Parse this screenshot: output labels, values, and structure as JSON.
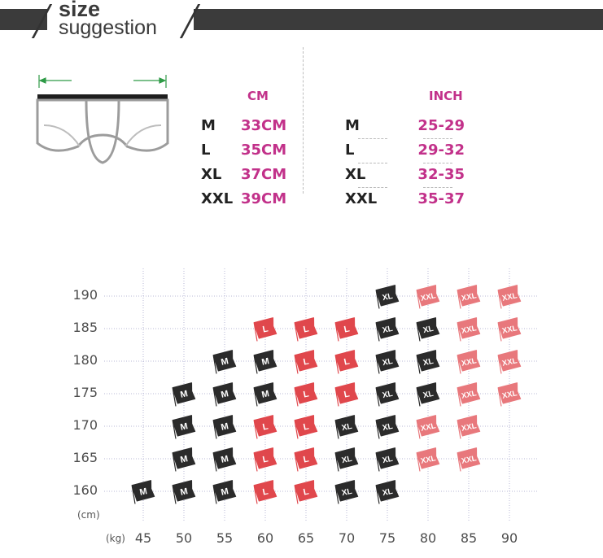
{
  "header": {
    "title_line1": "size",
    "title_line2": "suggestion"
  },
  "size_table": {
    "cm_title": "CM",
    "inch_title": "INCH",
    "rows": [
      {
        "size": "M",
        "cm": "33CM",
        "inch": "25-29"
      },
      {
        "size": "L",
        "cm": "35CM",
        "inch": "29-32"
      },
      {
        "size": "XL",
        "cm": "37CM",
        "inch": "32-35"
      },
      {
        "size": "XXL",
        "cm": "39CM",
        "inch": "35-37"
      }
    ]
  },
  "colors": {
    "pink": "#c2318a",
    "dark_flag": "#2b2b2b",
    "red_flag": "#e0474c",
    "xxl_flag": "#e8787c"
  },
  "chart_data": {
    "type": "table",
    "xlabel": "(kg)",
    "ylabel": "(cm)",
    "x": [
      45,
      50,
      55,
      60,
      65,
      70,
      75,
      80,
      85,
      90
    ],
    "y": [
      160,
      165,
      170,
      175,
      180,
      185,
      190
    ],
    "grid": true,
    "cells": [
      {
        "weight": 75,
        "height": 190,
        "size": "XL"
      },
      {
        "weight": 80,
        "height": 190,
        "size": "XXL"
      },
      {
        "weight": 85,
        "height": 190,
        "size": "XXL"
      },
      {
        "weight": 90,
        "height": 190,
        "size": "XXL"
      },
      {
        "weight": 60,
        "height": 185,
        "size": "L"
      },
      {
        "weight": 65,
        "height": 185,
        "size": "L"
      },
      {
        "weight": 70,
        "height": 185,
        "size": "L"
      },
      {
        "weight": 75,
        "height": 185,
        "size": "XL"
      },
      {
        "weight": 80,
        "height": 185,
        "size": "XL"
      },
      {
        "weight": 85,
        "height": 185,
        "size": "XXL"
      },
      {
        "weight": 90,
        "height": 185,
        "size": "XXL"
      },
      {
        "weight": 55,
        "height": 180,
        "size": "M"
      },
      {
        "weight": 60,
        "height": 180,
        "size": "M"
      },
      {
        "weight": 65,
        "height": 180,
        "size": "L"
      },
      {
        "weight": 70,
        "height": 180,
        "size": "L"
      },
      {
        "weight": 75,
        "height": 180,
        "size": "XL"
      },
      {
        "weight": 80,
        "height": 180,
        "size": "XL"
      },
      {
        "weight": 85,
        "height": 180,
        "size": "XXL"
      },
      {
        "weight": 90,
        "height": 180,
        "size": "XXL"
      },
      {
        "weight": 50,
        "height": 175,
        "size": "M"
      },
      {
        "weight": 55,
        "height": 175,
        "size": "M"
      },
      {
        "weight": 60,
        "height": 175,
        "size": "M"
      },
      {
        "weight": 65,
        "height": 175,
        "size": "L"
      },
      {
        "weight": 70,
        "height": 175,
        "size": "L"
      },
      {
        "weight": 75,
        "height": 175,
        "size": "XL"
      },
      {
        "weight": 80,
        "height": 175,
        "size": "XL"
      },
      {
        "weight": 85,
        "height": 175,
        "size": "XXL"
      },
      {
        "weight": 90,
        "height": 175,
        "size": "XXL"
      },
      {
        "weight": 50,
        "height": 170,
        "size": "M"
      },
      {
        "weight": 55,
        "height": 170,
        "size": "M"
      },
      {
        "weight": 60,
        "height": 170,
        "size": "L"
      },
      {
        "weight": 65,
        "height": 170,
        "size": "L"
      },
      {
        "weight": 70,
        "height": 170,
        "size": "XL"
      },
      {
        "weight": 75,
        "height": 170,
        "size": "XL"
      },
      {
        "weight": 80,
        "height": 170,
        "size": "XXL"
      },
      {
        "weight": 85,
        "height": 170,
        "size": "XXL"
      },
      {
        "weight": 50,
        "height": 165,
        "size": "M"
      },
      {
        "weight": 55,
        "height": 165,
        "size": "M"
      },
      {
        "weight": 60,
        "height": 165,
        "size": "L"
      },
      {
        "weight": 65,
        "height": 165,
        "size": "L"
      },
      {
        "weight": 70,
        "height": 165,
        "size": "XL"
      },
      {
        "weight": 75,
        "height": 165,
        "size": "XL"
      },
      {
        "weight": 80,
        "height": 165,
        "size": "XXL"
      },
      {
        "weight": 85,
        "height": 165,
        "size": "XXL"
      },
      {
        "weight": 45,
        "height": 160,
        "size": "M"
      },
      {
        "weight": 50,
        "height": 160,
        "size": "M"
      },
      {
        "weight": 55,
        "height": 160,
        "size": "M"
      },
      {
        "weight": 60,
        "height": 160,
        "size": "L"
      },
      {
        "weight": 65,
        "height": 160,
        "size": "L"
      },
      {
        "weight": 70,
        "height": 160,
        "size": "XL"
      },
      {
        "weight": 75,
        "height": 160,
        "size": "XL"
      }
    ]
  }
}
